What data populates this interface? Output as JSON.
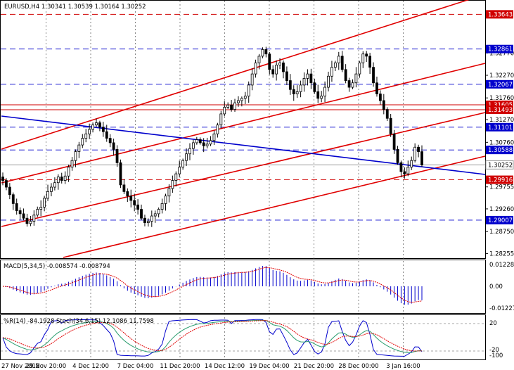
{
  "chart_data": {
    "type": "candlestick",
    "symbol_line": "EURUSD,H4  1.30341 1.30539 1.30164 1.30252",
    "price_axis": {
      "ylim": [
        1.2815,
        1.3395
      ],
      "ticks": [
        "1.32770",
        "1.32270",
        "1.31760",
        "1.31270",
        "1.30760",
        "1.29755",
        "1.29260",
        "1.28750",
        "1.28255"
      ]
    },
    "x_labels": [
      "27 Nov 2012",
      "29 Nov 20:00",
      "4 Dec 12:00",
      "7 Dec 04:00",
      "11 Dec 20:00",
      "14 Dec 12:00",
      "19 Dec 04:00",
      "21 Dec 20:00",
      "28 Dec 00:00",
      "3 Jan 16:00"
    ],
    "close": [
      1.299,
      1.2975,
      1.2958,
      1.2938,
      1.2922,
      1.2915,
      1.2905,
      1.2893,
      1.2898,
      1.2912,
      1.2925,
      1.293,
      1.295,
      1.2965,
      1.2975,
      1.2985,
      1.2998,
      1.299,
      1.3,
      1.302,
      1.3035,
      1.3055,
      1.307,
      1.3085,
      1.3095,
      1.3105,
      1.3115,
      1.312,
      1.311,
      1.31,
      1.3085,
      1.3075,
      1.306,
      1.303,
      1.298,
      1.2965,
      1.2955,
      1.2945,
      1.2935,
      1.2925,
      1.2905,
      1.2895,
      1.2898,
      1.291,
      1.2915,
      1.2925,
      1.2938,
      1.2955,
      1.2972,
      1.299,
      1.3005,
      1.302,
      1.3035,
      1.305,
      1.3062,
      1.3075,
      1.3082,
      1.3075,
      1.3068,
      1.3072,
      1.308,
      1.3095,
      1.3115,
      1.314,
      1.3155,
      1.316,
      1.315,
      1.3165,
      1.317,
      1.3175,
      1.318,
      1.3205,
      1.323,
      1.3255,
      1.327,
      1.3285,
      1.3275,
      1.324,
      1.323,
      1.325,
      1.3255,
      1.3235,
      1.3215,
      1.3195,
      1.3185,
      1.319,
      1.3205,
      1.322,
      1.323,
      1.321,
      1.319,
      1.3175,
      1.318,
      1.32,
      1.3225,
      1.3245,
      1.3255,
      1.327,
      1.324,
      1.3215,
      1.32,
      1.321,
      1.323,
      1.3255,
      1.3275,
      1.327,
      1.3245,
      1.321,
      1.3185,
      1.317,
      1.315,
      1.313,
      1.3095,
      1.306,
      1.303,
      1.301,
      1.3005,
      1.302,
      1.3035,
      1.3065,
      1.3055,
      1.3025
    ],
    "hlines": [
      {
        "price": 1.33643,
        "color": "#d00000",
        "label": "1.33643",
        "style": "dash"
      },
      {
        "price": 1.32861,
        "color": "#0000cc",
        "label": "1.32861",
        "style": "dash"
      },
      {
        "price": 1.32067,
        "color": "#0000cc",
        "label": "1.32067",
        "style": "dash"
      },
      {
        "price": 1.31605,
        "color": "#d00000",
        "label": "1.31605",
        "style": "solid"
      },
      {
        "price": 1.31493,
        "color": "#d00000",
        "label": "1.31493",
        "style": "solid"
      },
      {
        "price": 1.31101,
        "color": "#0000cc",
        "label": "1.31101",
        "style": "dash"
      },
      {
        "price": 1.30588,
        "color": "#0000cc",
        "label": "1.30588",
        "style": "dash"
      },
      {
        "price": 1.30252,
        "color": "#999999",
        "label": "1.30252",
        "style": "solid"
      },
      {
        "price": 1.29916,
        "color": "#d00000",
        "label": "1.29916",
        "style": "dash"
      },
      {
        "price": 1.29007,
        "color": "#0000cc",
        "label": "1.29007",
        "style": "dash"
      }
    ],
    "macd": {
      "label": "MACD(5,34,5) -0.008574 -0.008794",
      "ticks": [
        "0.012282",
        "0.00",
        "-0.012271"
      ],
      "ylim": [
        -0.0145,
        0.0145
      ]
    },
    "wpr": {
      "label": "%R(14) -84.1928  Stoch(34,6,15) 12.1086 11.7598",
      "ticks": [
        "20",
        "-20",
        "-100"
      ]
    },
    "colors": {
      "bull": "#000000",
      "bear": "#000000",
      "channel": "#e00000",
      "trend": "#0000cc",
      "macd": "#0000cc",
      "signal": "#e00000"
    }
  }
}
